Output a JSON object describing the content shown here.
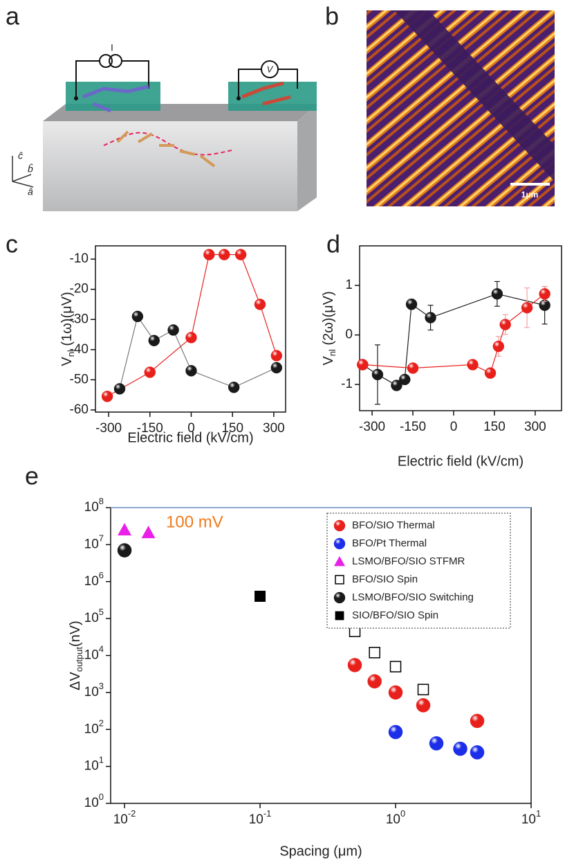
{
  "figure": {
    "panel_labels": [
      "a",
      "b",
      "c",
      "d",
      "e"
    ],
    "schematic": {
      "current_source": "I",
      "voltmeter": "V",
      "axes": [
        "ĉ",
        "b̂",
        "â"
      ]
    },
    "afm": {
      "scale_bar": "1μm"
    }
  },
  "chart_data": [
    {
      "type": "line",
      "xlabel": "Electric field (kV/cm)",
      "ylabel": {
        "main": "V",
        "sub": "nl",
        "rest": " (1ω)(μV)"
      },
      "xlim": [
        -348,
        343
      ],
      "ylim": [
        -60.7,
        -5.6
      ],
      "xticks": [
        -300,
        -150,
        0,
        150,
        300
      ],
      "yticks": [
        -60,
        -50,
        -40,
        -30,
        -20,
        -10
      ],
      "series": [
        {
          "color": "#e8201c",
          "line_color": "#e8201c",
          "x": [
            -305,
            -150,
            0,
            65,
            120,
            180,
            250,
            310
          ],
          "values": [
            -55.5,
            -47.5,
            -36,
            -8.5,
            -8.5,
            -8.5,
            -25,
            -42
          ]
        },
        {
          "color": "#1a1a1a",
          "line_color": "#777777",
          "x": [
            -260,
            -195,
            -135,
            -65,
            0,
            155,
            310
          ],
          "values": [
            -53,
            -29,
            -37,
            -33.5,
            -47,
            -52.5,
            -46
          ]
        }
      ]
    },
    {
      "type": "line",
      "xlabel": "Electric field (kV/cm)",
      "ylabel": {
        "main": "V",
        "sub": "nl",
        "rest": " (2ω)(μV)"
      },
      "xlim": [
        -346,
        397
      ],
      "ylim": [
        -1.53,
        1.8
      ],
      "xticks": [
        -300,
        -150,
        0,
        150,
        300
      ],
      "yticks": [
        -1,
        0,
        1
      ],
      "series": [
        {
          "color": "#1a1a1a",
          "line_color": "#1a1a1a",
          "error_color": "#1a1a1a",
          "x": [
            -335,
            -280,
            -210,
            -180,
            -155,
            -85,
            160,
            335
          ],
          "values": [
            -0.6,
            -0.8,
            -1.02,
            -0.9,
            0.62,
            0.35,
            0.83,
            0.6
          ],
          "errors": [
            0.05,
            0.6,
            0.08,
            0.05,
            0.1,
            0.25,
            0.25,
            0.38
          ]
        },
        {
          "color": "#e8201c",
          "line_color": "#e8201c",
          "error_color": "#f4a0a0",
          "x": [
            -335,
            -150,
            70,
            135,
            165,
            190,
            270,
            335
          ],
          "values": [
            -0.6,
            -0.67,
            -0.6,
            -0.77,
            -0.23,
            0.21,
            0.55,
            0.83
          ],
          "errors": [
            0.05,
            0.05,
            0.1,
            0.05,
            0.2,
            0.2,
            0.4,
            0.15
          ]
        }
      ]
    },
    {
      "type": "scatter",
      "xlabel": "Spacing (μm)",
      "ylabel": {
        "main": "ΔV",
        "sub": "output",
        "rest": "(nV)"
      },
      "xscale": "log",
      "yscale": "log",
      "legend": "top-right",
      "xlim": [
        0.0079,
        10
      ],
      "ylim": [
        1,
        100000000
      ],
      "xticks": [
        {
          "value": 0.01,
          "label": "10",
          "exponent": "-2"
        },
        {
          "value": 0.1,
          "label": "10",
          "exponent": "-1"
        },
        {
          "value": 1,
          "label": "10",
          "exponent": "0"
        },
        {
          "value": 10,
          "label": "10",
          "exponent": "1"
        }
      ],
      "yticks": [
        {
          "value": 1,
          "label": "10",
          "exponent": "0"
        },
        {
          "value": 10,
          "label": "10",
          "exponent": "1"
        },
        {
          "value": 100,
          "label": "10",
          "exponent": "2"
        },
        {
          "value": 1000,
          "label": "10",
          "exponent": "3"
        },
        {
          "value": 10000,
          "label": "10",
          "exponent": "4"
        },
        {
          "value": 100000,
          "label": "10",
          "exponent": "5"
        },
        {
          "value": 1000000,
          "label": "10",
          "exponent": "6"
        },
        {
          "value": 10000000,
          "label": "10",
          "exponent": "7"
        },
        {
          "value": 100000000,
          "label": "10",
          "exponent": "8"
        }
      ],
      "reference_line": {
        "value": 100000000,
        "color": "#8fb4e3",
        "label": "100 mV",
        "label_color": "#f07c1c"
      },
      "series": [
        {
          "name": "BFO/SIO Thermal",
          "color": "#e8201c",
          "marker": "sphere",
          "x": [
            0.5,
            0.7,
            1,
            1.6,
            4
          ],
          "values": [
            5500,
            2000,
            1000,
            450,
            170
          ]
        },
        {
          "name": "BFO/Pt Thermal",
          "color": "#1c2ee8",
          "marker": "sphere",
          "x": [
            1,
            2,
            3,
            4
          ],
          "values": [
            85,
            42,
            30,
            24
          ]
        },
        {
          "name": "LSMO/BFO/SIO STFMR",
          "color": "#e820e8",
          "marker": "triangle",
          "x": [
            0.01,
            0.015
          ],
          "values": [
            25000000,
            21000000
          ]
        },
        {
          "name": "BFO/SIO Spin",
          "color": "#000000",
          "marker": "square-open",
          "x": [
            0.5,
            0.7,
            1,
            1.6
          ],
          "values": [
            45000,
            12000,
            5000,
            1200
          ]
        },
        {
          "name": "LSMO/BFO/SIO Switching",
          "color": "#1a1a1a",
          "marker": "sphere",
          "x": [
            0.01
          ],
          "values": [
            7000000
          ]
        },
        {
          "name": "SIO/BFO/SIO Spin",
          "color": "#000000",
          "marker": "square",
          "x": [
            0.1
          ],
          "values": [
            400000
          ]
        }
      ]
    }
  ]
}
